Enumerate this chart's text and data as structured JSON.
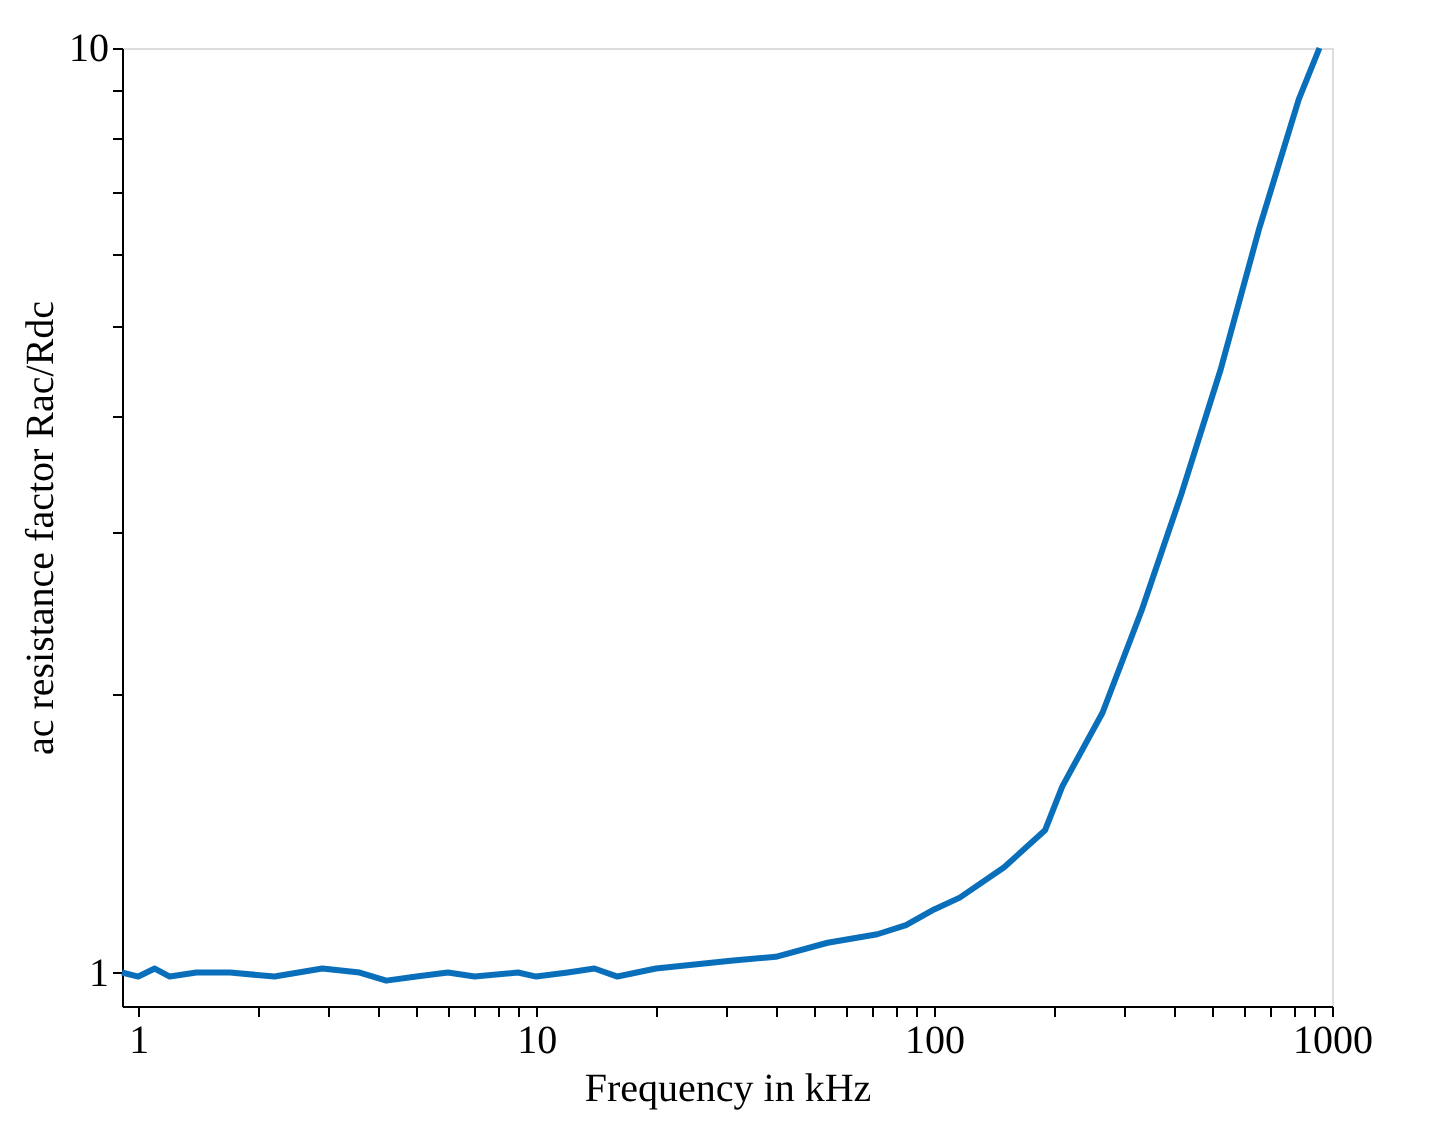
{
  "chart_data": {
    "type": "line",
    "xlabel": "Frequency in kHz",
    "ylabel": "ac resistance factor Rac/Rdc",
    "log": "xy",
    "grid": false,
    "marker": "none",
    "line_style": "solid",
    "xlim": [
      0.91,
      1000
    ],
    "ylim": [
      0.92,
      10
    ],
    "xticks": [
      1,
      {
        "value": 2,
        "label": null
      },
      {
        "value": 3,
        "label": null
      },
      {
        "value": 4,
        "label": null
      },
      {
        "value": 5,
        "label": null
      },
      {
        "value": 6,
        "label": null
      },
      {
        "value": 7,
        "label": null
      },
      {
        "value": 8,
        "label": null
      },
      {
        "value": 9,
        "label": null
      },
      10,
      {
        "value": 20,
        "label": null
      },
      {
        "value": 30,
        "label": null
      },
      {
        "value": 40,
        "label": null
      },
      {
        "value": 50,
        "label": null
      },
      {
        "value": 60,
        "label": null
      },
      {
        "value": 70,
        "label": null
      },
      {
        "value": 80,
        "label": null
      },
      {
        "value": 90,
        "label": null
      },
      100,
      {
        "value": 200,
        "label": null
      },
      {
        "value": 300,
        "label": null
      },
      {
        "value": 400,
        "label": null
      },
      {
        "value": 500,
        "label": null
      },
      {
        "value": 600,
        "label": null
      },
      {
        "value": 700,
        "label": null
      },
      {
        "value": 800,
        "label": null
      },
      {
        "value": 900,
        "label": null
      },
      1000
    ],
    "yticks": [
      1,
      {
        "value": 2,
        "label": null
      },
      {
        "value": 3,
        "label": null
      },
      {
        "value": 4,
        "label": null
      },
      {
        "value": 5,
        "label": null
      },
      {
        "value": 6,
        "label": null
      },
      {
        "value": 7,
        "label": null
      },
      {
        "value": 8,
        "label": null
      },
      {
        "value": 9,
        "label": null
      },
      10
    ],
    "series": [
      {
        "color": "#0a6fba",
        "x": [
          0.91,
          1.0,
          1.1,
          1.2,
          1.4,
          1.7,
          2.2,
          2.9,
          3.6,
          4.2,
          5.0,
          6.0,
          7.0,
          9.0,
          10,
          12,
          14,
          16,
          20,
          25,
          30.8,
          40,
          54,
          72,
          85,
          100,
          116,
          150,
          190,
          210,
          265,
          333,
          418,
          525,
          657,
          825,
          930
        ],
        "values": [
          1.0,
          0.99,
          1.01,
          0.99,
          1.0,
          1.0,
          0.99,
          1.01,
          1.0,
          0.98,
          0.99,
          1.0,
          0.99,
          1.0,
          0.99,
          1.0,
          1.01,
          0.99,
          1.01,
          1.02,
          1.03,
          1.04,
          1.077,
          1.1,
          1.125,
          1.17,
          1.205,
          1.3,
          1.425,
          1.59,
          1.91,
          2.47,
          3.29,
          4.49,
          6.39,
          8.8,
          10
        ]
      }
    ]
  }
}
